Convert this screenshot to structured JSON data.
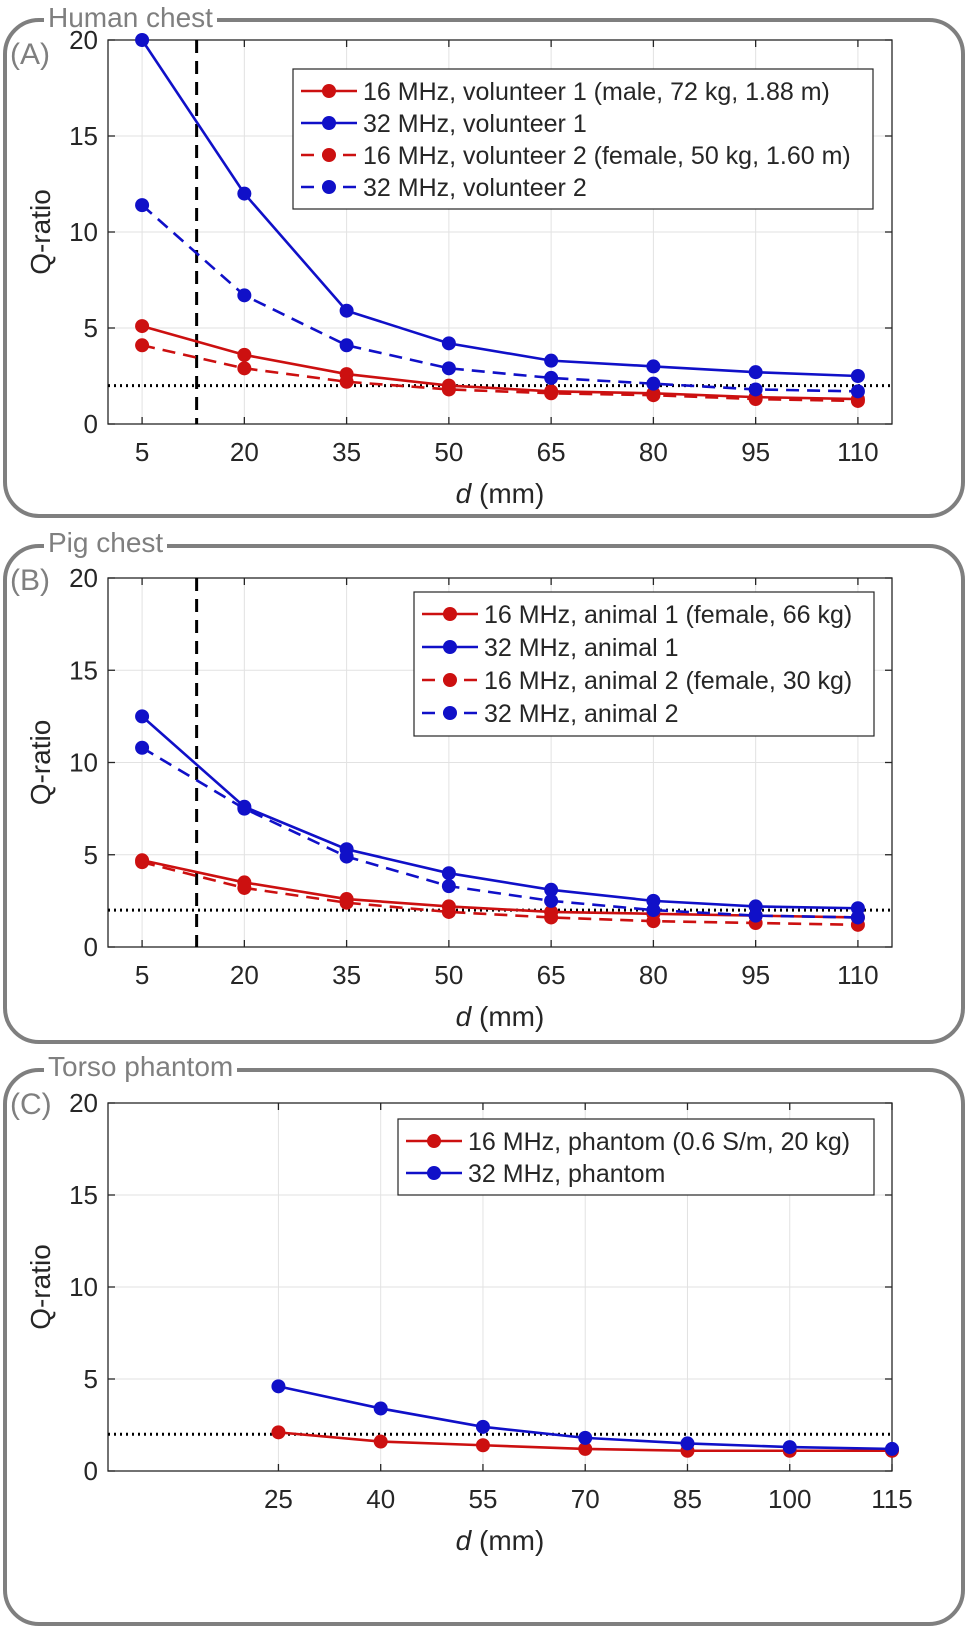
{
  "colors": {
    "red": "#cc1010",
    "blue": "#1010c8",
    "frame": "#7f7f7f",
    "grid": "#e2e2e2"
  },
  "panels": [
    {
      "title": "Human chest",
      "letter": "(A)",
      "chart_data": {
        "type": "line",
        "xlabel_italic": "d",
        "xlabel_rest": " (mm)",
        "ylabel": "Q-ratio",
        "ylim": [
          0,
          20
        ],
        "yticks": [
          0,
          5,
          10,
          15,
          20
        ],
        "xlim": [
          0,
          115
        ],
        "xticks": [
          5,
          20,
          35,
          50,
          65,
          80,
          95,
          110
        ],
        "reference_line_y": 2,
        "vertical_dashed_x": 13,
        "legend_position": "top-right",
        "series": [
          {
            "name": "16 MHz, volunteer 1 (male, 72 kg, 1.88 m)",
            "color": "red",
            "style": "solid",
            "x": [
              5,
              20,
              35,
              50,
              65,
              80,
              95,
              110
            ],
            "values": [
              5.1,
              3.6,
              2.6,
              2.0,
              1.7,
              1.6,
              1.4,
              1.3
            ]
          },
          {
            "name": "32 MHz, volunteer 1",
            "color": "blue",
            "style": "solid",
            "x": [
              5,
              20,
              35,
              50,
              65,
              80,
              95,
              110
            ],
            "values": [
              20.0,
              12.0,
              5.9,
              4.2,
              3.3,
              3.0,
              2.7,
              2.5
            ]
          },
          {
            "name": "16 MHz, volunteer 2 (female, 50 kg, 1.60 m)",
            "color": "red",
            "style": "dashed",
            "x": [
              5,
              20,
              35,
              50,
              65,
              80,
              95,
              110
            ],
            "values": [
              4.1,
              2.9,
              2.2,
              1.8,
              1.6,
              1.5,
              1.3,
              1.2
            ]
          },
          {
            "name": "32 MHz, volunteer 2",
            "color": "blue",
            "style": "dashed",
            "x": [
              5,
              20,
              35,
              50,
              65,
              80,
              95,
              110
            ],
            "values": [
              11.4,
              6.7,
              4.1,
              2.9,
              2.4,
              2.1,
              1.8,
              1.7
            ]
          }
        ]
      }
    },
    {
      "title": "Pig chest",
      "letter": "(B)",
      "chart_data": {
        "type": "line",
        "xlabel_italic": "d",
        "xlabel_rest": " (mm)",
        "ylabel": "Q-ratio",
        "ylim": [
          0,
          20
        ],
        "yticks": [
          0,
          5,
          10,
          15,
          20
        ],
        "xlim": [
          0,
          115
        ],
        "xticks": [
          5,
          20,
          35,
          50,
          65,
          80,
          95,
          110
        ],
        "reference_line_y": 2,
        "vertical_dashed_x": 13,
        "legend_position": "top-right",
        "series": [
          {
            "name": "16 MHz, animal 1 (female, 66 kg)",
            "color": "red",
            "style": "solid",
            "x": [
              5,
              20,
              35,
              50,
              65,
              80,
              95,
              110
            ],
            "values": [
              4.7,
              3.5,
              2.6,
              2.2,
              1.9,
              1.8,
              1.7,
              1.6
            ]
          },
          {
            "name": "32 MHz, animal 1",
            "color": "blue",
            "style": "solid",
            "x": [
              5,
              20,
              35,
              50,
              65,
              80,
              95,
              110
            ],
            "values": [
              12.5,
              7.6,
              5.3,
              4.0,
              3.1,
              2.5,
              2.2,
              2.1
            ]
          },
          {
            "name": "16 MHz, animal 2 (female, 30 kg)",
            "color": "red",
            "style": "dashed",
            "x": [
              5,
              20,
              35,
              50,
              65,
              80,
              95,
              110
            ],
            "values": [
              4.6,
              3.2,
              2.4,
              1.9,
              1.6,
              1.4,
              1.3,
              1.2
            ]
          },
          {
            "name": "32 MHz, animal 2",
            "color": "blue",
            "style": "dashed",
            "x": [
              5,
              20,
              35,
              50,
              65,
              80,
              95,
              110
            ],
            "values": [
              10.8,
              7.5,
              4.9,
              3.3,
              2.5,
              2.0,
              1.7,
              1.6
            ]
          }
        ]
      }
    },
    {
      "title": "Torso phantom",
      "letter": "(C)",
      "chart_data": {
        "type": "line",
        "xlabel_italic": "d",
        "xlabel_rest": " (mm)",
        "ylabel": "Q-ratio",
        "ylim": [
          0,
          20
        ],
        "yticks": [
          0,
          5,
          10,
          15,
          20
        ],
        "xlim": [
          0,
          115
        ],
        "xticks": [
          25,
          40,
          55,
          70,
          85,
          100,
          115
        ],
        "reference_line_y": 2,
        "legend_position": "top-right",
        "series": [
          {
            "name": "16 MHz, phantom (0.6 S/m, 20 kg)",
            "color": "red",
            "style": "solid",
            "x": [
              25,
              40,
              55,
              70,
              85,
              100,
              115
            ],
            "values": [
              2.1,
              1.6,
              1.4,
              1.2,
              1.1,
              1.1,
              1.1
            ]
          },
          {
            "name": "32 MHz, phantom",
            "color": "blue",
            "style": "solid",
            "x": [
              25,
              40,
              55,
              70,
              85,
              100,
              115
            ],
            "values": [
              4.6,
              3.4,
              2.4,
              1.8,
              1.5,
              1.3,
              1.2
            ]
          }
        ]
      }
    }
  ]
}
